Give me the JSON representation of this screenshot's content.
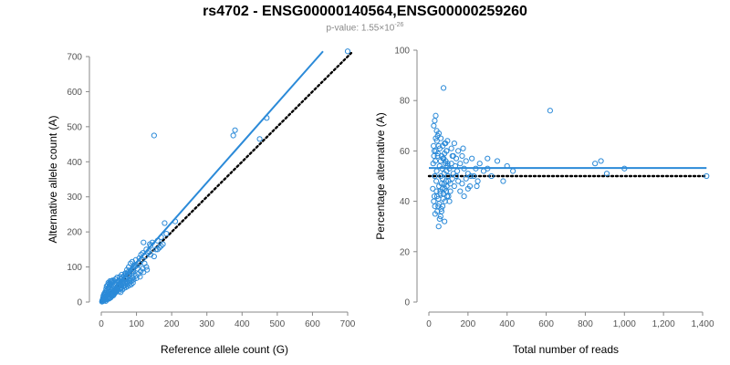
{
  "title": "rs4702 - ENSG00000140564,ENSG00000259260",
  "subtitle": {
    "prefix": "p-value: 1.55×10",
    "exponent": "-26"
  },
  "colors": {
    "points": "#2b8ad8",
    "fit": "#2b8ad8",
    "reference": "#000000"
  },
  "chart_data": [
    {
      "type": "scatter",
      "xlabel": "Reference allele count (G)",
      "ylabel": "Alternative allele count (A)",
      "xlim": [
        0,
        700
      ],
      "ylim": [
        0,
        700
      ],
      "xticks": [
        0,
        100,
        200,
        300,
        400,
        500,
        600,
        700
      ],
      "xtick_labels": [
        "0",
        "100",
        "200",
        "300",
        "400",
        "500",
        "600",
        "700"
      ],
      "yticks": [
        0,
        100,
        200,
        300,
        400,
        500,
        600,
        700
      ],
      "ytick_labels": [
        "0",
        "100",
        "200",
        "300",
        "400",
        "500",
        "600",
        "700"
      ],
      "points": [
        [
          2,
          1
        ],
        [
          3,
          5
        ],
        [
          4,
          2
        ],
        [
          5,
          8
        ],
        [
          6,
          3
        ],
        [
          7,
          10
        ],
        [
          8,
          4
        ],
        [
          9,
          12
        ],
        [
          10,
          6
        ],
        [
          11,
          15
        ],
        [
          12,
          8
        ],
        [
          13,
          3
        ],
        [
          14,
          18
        ],
        [
          15,
          10
        ],
        [
          16,
          7
        ],
        [
          17,
          20
        ],
        [
          18,
          12
        ],
        [
          19,
          25
        ],
        [
          20,
          14
        ],
        [
          21,
          9
        ],
        [
          22,
          28
        ],
        [
          23,
          16
        ],
        [
          24,
          11
        ],
        [
          25,
          30
        ],
        [
          26,
          20
        ],
        [
          27,
          13
        ],
        [
          28,
          35
        ],
        [
          29,
          22
        ],
        [
          30,
          17
        ],
        [
          31,
          40
        ],
        [
          32,
          25
        ],
        [
          33,
          18
        ],
        [
          34,
          44
        ],
        [
          35,
          30
        ],
        [
          36,
          22
        ],
        [
          37,
          48
        ],
        [
          38,
          33
        ],
        [
          39,
          26
        ],
        [
          40,
          50
        ],
        [
          41,
          36
        ],
        [
          42,
          29
        ],
        [
          43,
          55
        ],
        [
          44,
          38
        ],
        [
          45,
          32
        ],
        [
          46,
          58
        ],
        [
          47,
          41
        ],
        [
          48,
          35
        ],
        [
          50,
          62
        ],
        [
          52,
          45
        ],
        [
          54,
          38
        ],
        [
          55,
          65
        ],
        [
          57,
          48
        ],
        [
          58,
          42
        ],
        [
          60,
          70
        ],
        [
          62,
          52
        ],
        [
          64,
          45
        ],
        [
          65,
          75
        ],
        [
          67,
          55
        ],
        [
          68,
          48
        ],
        [
          70,
          80
        ],
        [
          72,
          58
        ],
        [
          74,
          52
        ],
        [
          75,
          85
        ],
        [
          78,
          62
        ],
        [
          80,
          55
        ],
        [
          82,
          90
        ],
        [
          84,
          66
        ],
        [
          86,
          60
        ],
        [
          88,
          95
        ],
        [
          90,
          70
        ],
        [
          92,
          64
        ],
        [
          95,
          100
        ],
        [
          98,
          75
        ],
        [
          100,
          68
        ],
        [
          102,
          105
        ],
        [
          105,
          80
        ],
        [
          108,
          110
        ],
        [
          110,
          72
        ],
        [
          112,
          88
        ],
        [
          115,
          120
        ],
        [
          118,
          95
        ],
        [
          120,
          85
        ],
        [
          125,
          130
        ],
        [
          128,
          100
        ],
        [
          130,
          92
        ],
        [
          135,
          145
        ],
        [
          140,
          160
        ],
        [
          145,
          170
        ],
        [
          150,
          130
        ],
        [
          155,
          150
        ],
        [
          160,
          175
        ],
        [
          165,
          155
        ],
        [
          170,
          185
        ],
        [
          175,
          165
        ],
        [
          8,
          22
        ],
        [
          12,
          30
        ],
        [
          15,
          45
        ],
        [
          20,
          55
        ],
        [
          25,
          60
        ],
        [
          30,
          60
        ],
        [
          35,
          20
        ],
        [
          40,
          65
        ],
        [
          45,
          70
        ],
        [
          50,
          30
        ],
        [
          55,
          28
        ],
        [
          60,
          35
        ],
        [
          65,
          40
        ],
        [
          70,
          42
        ],
        [
          75,
          45
        ],
        [
          80,
          48
        ],
        [
          85,
          50
        ],
        [
          90,
          55
        ],
        [
          6,
          18
        ],
        [
          9,
          25
        ],
        [
          14,
          38
        ],
        [
          18,
          48
        ],
        [
          22,
          52
        ],
        [
          28,
          58
        ],
        [
          32,
          62
        ],
        [
          38,
          28
        ],
        [
          44,
          30
        ],
        [
          48,
          60
        ],
        [
          53,
          72
        ],
        [
          58,
          78
        ],
        [
          63,
          58
        ],
        [
          68,
          82
        ],
        [
          73,
          92
        ],
        [
          78,
          100
        ],
        [
          83,
          110
        ],
        [
          88,
          115
        ],
        [
          93,
          105
        ],
        [
          98,
          120
        ],
        [
          103,
          95
        ],
        [
          108,
          125
        ],
        [
          113,
          135
        ],
        [
          118,
          140
        ],
        [
          123,
          110
        ],
        [
          128,
          150
        ],
        [
          133,
          140
        ],
        [
          138,
          165
        ],
        [
          5,
          12
        ],
        [
          7,
          15
        ],
        [
          10,
          20
        ],
        [
          13,
          26
        ],
        [
          16,
          33
        ],
        [
          19,
          38
        ],
        [
          21,
          42
        ],
        [
          24,
          45
        ],
        [
          26,
          50
        ],
        [
          29,
          52
        ],
        [
          31,
          55
        ],
        [
          33,
          24
        ],
        [
          36,
          27
        ],
        [
          39,
          32
        ],
        [
          42,
          36
        ],
        [
          46,
          40
        ],
        [
          49,
          44
        ],
        [
          51,
          47
        ],
        [
          56,
          50
        ],
        [
          59,
          55
        ],
        [
          61,
          58
        ],
        [
          66,
          62
        ],
        [
          69,
          66
        ],
        [
          71,
          68
        ],
        [
          76,
          72
        ],
        [
          79,
          75
        ],
        [
          81,
          78
        ],
        [
          86,
          82
        ],
        [
          89,
          84
        ],
        [
          91,
          88
        ],
        [
          150,
          475
        ],
        [
          210,
          230
        ],
        [
          180,
          225
        ],
        [
          375,
          475
        ],
        [
          380,
          490
        ],
        [
          450,
          465
        ],
        [
          470,
          525
        ],
        [
          700,
          715
        ],
        [
          170,
          160
        ],
        [
          185,
          195
        ],
        [
          120,
          170
        ],
        [
          140,
          135
        ],
        [
          160,
          150
        ]
      ],
      "series": [
        {
          "type": "line",
          "role": "fit",
          "x": [
            0,
            630
          ],
          "y": [
            0,
            715
          ]
        },
        {
          "type": "line",
          "role": "reference",
          "style": "dotted",
          "x": [
            0,
            710
          ],
          "y": [
            0,
            710
          ]
        }
      ]
    },
    {
      "type": "scatter",
      "xlabel": "Total number of reads",
      "ylabel": "Percentage alternative (A)",
      "xlim": [
        0,
        1400
      ],
      "ylim": [
        0,
        100
      ],
      "xticks": [
        0,
        200,
        400,
        600,
        800,
        1000,
        1200,
        1400
      ],
      "xtick_labels": [
        "0",
        "200",
        "400",
        "600",
        "800",
        "1,000",
        "1,200",
        "1,400"
      ],
      "yticks": [
        0,
        20,
        40,
        60,
        80,
        100
      ],
      "ytick_labels": [
        "0",
        "20",
        "40",
        "60",
        "80",
        "100"
      ],
      "points": [
        [
          20,
          45
        ],
        [
          22,
          55
        ],
        [
          25,
          40
        ],
        [
          28,
          60
        ],
        [
          30,
          50
        ],
        [
          32,
          35
        ],
        [
          35,
          65
        ],
        [
          38,
          48
        ],
        [
          40,
          52
        ],
        [
          42,
          42
        ],
        [
          45,
          58
        ],
        [
          48,
          38
        ],
        [
          50,
          62
        ],
        [
          52,
          46
        ],
        [
          55,
          54
        ],
        [
          58,
          44
        ],
        [
          60,
          56
        ],
        [
          62,
          50
        ],
        [
          65,
          47
        ],
        [
          68,
          53
        ],
        [
          70,
          49
        ],
        [
          72,
          57
        ],
        [
          75,
          43
        ],
        [
          78,
          51
        ],
        [
          80,
          59
        ],
        [
          82,
          45
        ],
        [
          85,
          55
        ],
        [
          88,
          48
        ],
        [
          90,
          52
        ],
        [
          92,
          46
        ],
        [
          95,
          54
        ],
        [
          98,
          50
        ],
        [
          100,
          48
        ],
        [
          105,
          53
        ],
        [
          110,
          47
        ],
        [
          115,
          55
        ],
        [
          120,
          49
        ],
        [
          125,
          51
        ],
        [
          130,
          46
        ],
        [
          135,
          54
        ],
        [
          140,
          50
        ],
        [
          145,
          52
        ],
        [
          150,
          48
        ],
        [
          160,
          55
        ],
        [
          170,
          47
        ],
        [
          180,
          53
        ],
        [
          190,
          49
        ],
        [
          200,
          51
        ],
        [
          210,
          46
        ],
        [
          220,
          57
        ],
        [
          25,
          70
        ],
        [
          30,
          72
        ],
        [
          35,
          74
        ],
        [
          40,
          68
        ],
        [
          45,
          66
        ],
        [
          50,
          30
        ],
        [
          55,
          33
        ],
        [
          60,
          34
        ],
        [
          65,
          36
        ],
        [
          70,
          38
        ],
        [
          75,
          85
        ],
        [
          80,
          32
        ],
        [
          85,
          63
        ],
        [
          90,
          60
        ],
        [
          95,
          64
        ],
        [
          100,
          42
        ],
        [
          105,
          40
        ],
        [
          110,
          44
        ],
        [
          115,
          61
        ],
        [
          120,
          58
        ],
        [
          24,
          62
        ],
        [
          26,
          58
        ],
        [
          28,
          42
        ],
        [
          31,
          38
        ],
        [
          33,
          56
        ],
        [
          36,
          60
        ],
        [
          39,
          44
        ],
        [
          41,
          64
        ],
        [
          43,
          36
        ],
        [
          46,
          59
        ],
        [
          49,
          41
        ],
        [
          51,
          67
        ],
        [
          53,
          39
        ],
        [
          56,
          61
        ],
        [
          59,
          43
        ],
        [
          61,
          65
        ],
        [
          63,
          37
        ],
        [
          66,
          58
        ],
        [
          69,
          45
        ],
        [
          71,
          62
        ],
        [
          73,
          41
        ],
        [
          76,
          57
        ],
        [
          79,
          47
        ],
        [
          81,
          63
        ],
        [
          83,
          40
        ],
        [
          86,
          56
        ],
        [
          89,
          44
        ],
        [
          91,
          60
        ],
        [
          93,
          42
        ],
        [
          96,
          55
        ],
        [
          150,
          60
        ],
        [
          160,
          44
        ],
        [
          170,
          58
        ],
        [
          180,
          42
        ],
        [
          190,
          56
        ],
        [
          200,
          45
        ],
        [
          230,
          50
        ],
        [
          240,
          53
        ],
        [
          250,
          48
        ],
        [
          260,
          55
        ],
        [
          280,
          52
        ],
        [
          300,
          57
        ],
        [
          320,
          50
        ],
        [
          350,
          56
        ],
        [
          380,
          48
        ],
        [
          400,
          54
        ],
        [
          430,
          52
        ],
        [
          300,
          53
        ],
        [
          620,
          76
        ],
        [
          850,
          55
        ],
        [
          880,
          56
        ],
        [
          910,
          51
        ],
        [
          1000,
          53
        ],
        [
          1420,
          50
        ],
        [
          140,
          57
        ],
        [
          130,
          63
        ],
        [
          125,
          58
        ],
        [
          175,
          61
        ],
        [
          215,
          50
        ],
        [
          245,
          46
        ]
      ],
      "series": [
        {
          "type": "line",
          "role": "fit",
          "x": [
            0,
            1420
          ],
          "y": [
            53.2,
            53.2
          ]
        },
        {
          "type": "line",
          "role": "reference",
          "style": "dotted",
          "x": [
            0,
            1420
          ],
          "y": [
            50,
            50
          ]
        }
      ]
    }
  ]
}
